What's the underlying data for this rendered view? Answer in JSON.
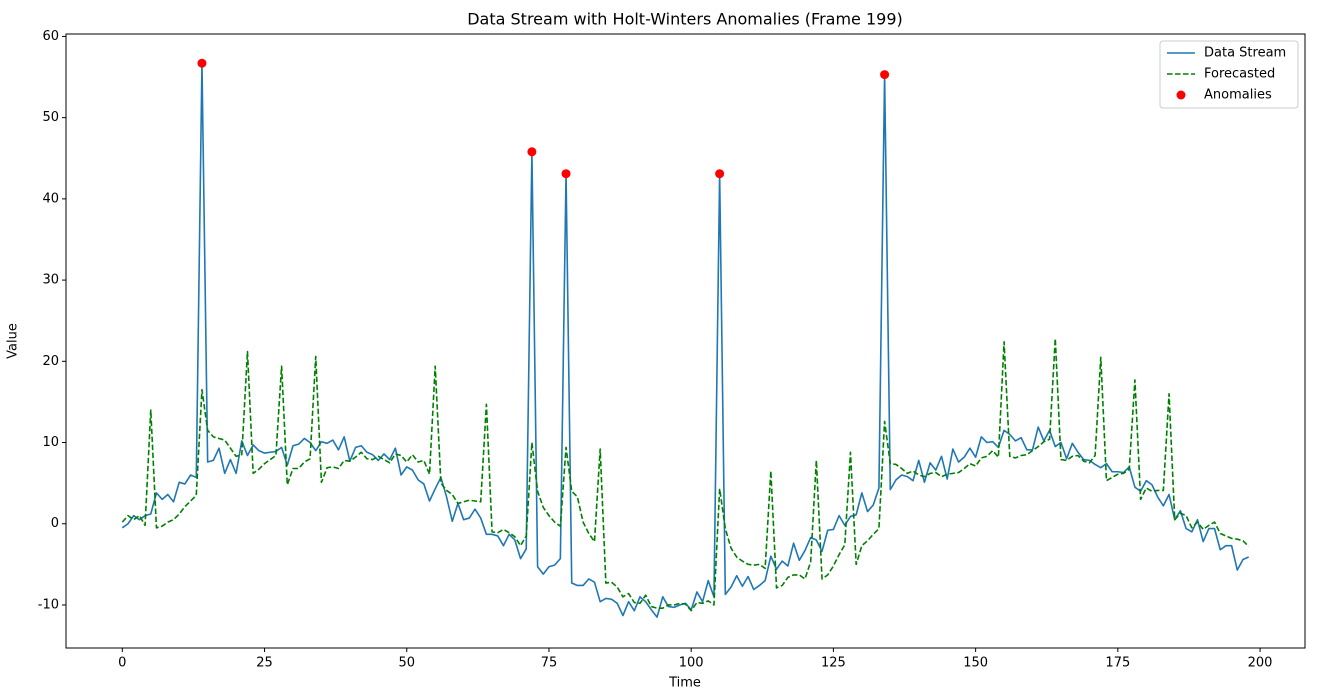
{
  "chart_data": {
    "type": "line",
    "title": "Data Stream with Holt-Winters Anomalies (Frame 199)",
    "x_label": "Time",
    "y_label": "Value",
    "x": [
      0,
      1,
      2,
      3,
      4,
      5,
      6,
      7,
      8,
      9,
      10,
      11,
      12,
      13,
      14,
      15,
      16,
      17,
      18,
      19,
      20,
      21,
      22,
      23,
      24,
      25,
      26,
      27,
      28,
      29,
      30,
      31,
      32,
      33,
      34,
      35,
      36,
      37,
      38,
      39,
      40,
      41,
      42,
      43,
      44,
      45,
      46,
      47,
      48,
      49,
      50,
      51,
      52,
      53,
      54,
      55,
      56,
      57,
      58,
      59,
      60,
      61,
      62,
      63,
      64,
      65,
      66,
      67,
      68,
      69,
      70,
      71,
      72,
      73,
      74,
      75,
      76,
      77,
      78,
      79,
      80,
      81,
      82,
      83,
      84,
      85,
      86,
      87,
      88,
      89,
      90,
      91,
      92,
      93,
      94,
      95,
      96,
      97,
      98,
      99,
      100,
      101,
      102,
      103,
      104,
      105,
      106,
      107,
      108,
      109,
      110,
      111,
      112,
      113,
      114,
      115,
      116,
      117,
      118,
      119,
      120,
      121,
      122,
      123,
      124,
      125,
      126,
      127,
      128,
      129,
      130,
      131,
      132,
      133,
      134,
      135,
      136,
      137,
      138,
      139,
      140,
      141,
      142,
      143,
      144,
      145,
      146,
      147,
      148,
      149,
      150,
      151,
      152,
      153,
      154,
      155,
      156,
      157,
      158,
      159,
      160,
      161,
      162,
      163,
      164,
      165,
      166,
      167,
      168,
      169,
      170,
      171,
      172,
      173,
      174,
      175,
      176,
      177,
      178,
      179,
      180,
      181,
      182,
      183,
      184,
      185,
      186,
      187,
      188,
      189,
      190,
      191,
      192,
      193,
      194,
      195,
      196,
      197,
      198
    ],
    "series": [
      {
        "name": "Data Stream",
        "color": "#1f77b4",
        "style": "solid",
        "values": [
          -0.5,
          0,
          1,
          0.5,
          1,
          1.2,
          3.8,
          3,
          3.6,
          2.7,
          5.1,
          4.9,
          6,
          5.7,
          56.7,
          7.6,
          7.8,
          9.3,
          6.2,
          7.9,
          6.2,
          10.2,
          8.4,
          9.7,
          9,
          8.7,
          8.8,
          8.9,
          9.4,
          7.2,
          9.6,
          9.8,
          10.5,
          10,
          9,
          10.1,
          9.9,
          10.3,
          9.1,
          10.7,
          7.7,
          9.4,
          9.6,
          8.8,
          8.5,
          7.8,
          8.6,
          7.9,
          9.3,
          6,
          7,
          6.6,
          5.4,
          4.9,
          2.8,
          4.3,
          5.7,
          3.3,
          0.3,
          2.5,
          0.5,
          0.7,
          1.8,
          0.7,
          -1.3,
          -1.3,
          -1.5,
          -2.7,
          -1.3,
          -2,
          -4.3,
          -3.1,
          45.8,
          -5.3,
          -6.2,
          -5.3,
          -5.1,
          -4.3,
          43.1,
          -7.3,
          -7.6,
          -7.6,
          -6.8,
          -7.2,
          -9.6,
          -9.2,
          -9.3,
          -9.8,
          -11.3,
          -9.6,
          -10.7,
          -9,
          -9.6,
          -10.6,
          -11.5,
          -9,
          -10.2,
          -10.3,
          -10,
          -9.8,
          -10.6,
          -8.4,
          -9.6,
          -7,
          -9,
          43.1,
          -8.7,
          -7.8,
          -6.4,
          -7.7,
          -6.5,
          -8.1,
          -7.6,
          -7,
          -4,
          -5.6,
          -4.6,
          -5.2,
          -2.4,
          -4.5,
          -3.3,
          -1.7,
          -2,
          -3.4,
          -0.8,
          -0.7,
          1,
          -0.2,
          0.9,
          1.1,
          3.8,
          1.5,
          2.3,
          4.4,
          55.3,
          4.2,
          5.4,
          6,
          5.8,
          5.3,
          7.8,
          5.1,
          7.5,
          6.6,
          8.3,
          5.5,
          9.2,
          7.6,
          8.2,
          9.3,
          8.2,
          10.7,
          10,
          10.1,
          9.4,
          11.5,
          11,
          10.2,
          10.6,
          9.1,
          9.1,
          11.9,
          10.2,
          11.5,
          9.5,
          10,
          8,
          9.9,
          8.8,
          7.9,
          7.8,
          7.3,
          6.9,
          7.4,
          6.4,
          6.4,
          6.3,
          7,
          4.5,
          4,
          5.3,
          4.8,
          3.3,
          2.2,
          3.6,
          0.5,
          1.6,
          -0.6,
          -1,
          0.5,
          -2.2,
          -0.6,
          -0.6,
          -3.2,
          -2.7,
          -2.7,
          -5.7,
          -4.4,
          -4.1
        ]
      },
      {
        "name": "Forecasted",
        "color": "#008000",
        "style": "dashed",
        "values": [
          0.2,
          1,
          0.5,
          1,
          -0.2,
          14,
          -0.5,
          -0.3,
          0.2,
          0.5,
          1.2,
          2.1,
          2.8,
          3.5,
          16.5,
          11.5,
          10.7,
          10.5,
          10.3,
          9.3,
          8.3,
          8.5,
          21.2,
          6.2,
          6.7,
          7.4,
          7.9,
          8.4,
          19.4,
          4.8,
          6.8,
          6.8,
          7.6,
          8,
          20.6,
          5.1,
          6.9,
          7,
          6.8,
          7.8,
          7.7,
          8.2,
          8.8,
          8,
          7.9,
          8.3,
          7.9,
          7.5,
          8.6,
          8.4,
          7.6,
          8.5,
          7.6,
          7.8,
          6.1,
          19.4,
          5,
          4.1,
          3.6,
          2.5,
          2.7,
          2.9,
          2.8,
          2.7,
          14.7,
          -1,
          -1.1,
          -0.7,
          -1.1,
          -1.6,
          -2.7,
          -1.5,
          10,
          4,
          2,
          1,
          0.2,
          -0.3,
          9.4,
          4,
          3.3,
          0.2,
          -1.2,
          -2.2,
          9.2,
          -7.3,
          -7.2,
          -7.8,
          -9,
          -8.6,
          -9.7,
          -9.8,
          -8.8,
          -10.2,
          -10.4,
          -10.4,
          -10,
          -10,
          -9.8,
          -9.9,
          -10.7,
          -9.7,
          -9.8,
          -9.5,
          -10,
          4.3,
          -0.6,
          -3,
          -4.1,
          -4.6,
          -5,
          -5.1,
          -5,
          -5.5,
          6.5,
          -7.9,
          -7.6,
          -6.6,
          -6.3,
          -6.3,
          -6.8,
          -4.7,
          7.8,
          -6.8,
          -6.3,
          -5.2,
          -3.8,
          -2.6,
          8.8,
          -5,
          -2.7,
          -2.1,
          -1.3,
          -0.6,
          12.6,
          7.4,
          7.3,
          6.8,
          6.2,
          6.5,
          6,
          5.8,
          6.2,
          6.3,
          5.8,
          6.1,
          6.2,
          6.3,
          6.8,
          7.4,
          7.1,
          8.1,
          8.3,
          9,
          8.2,
          22.4,
          8.3,
          8.1,
          8.4,
          8.5,
          9,
          9.5,
          10.1,
          10.4,
          22.8,
          7.9,
          7.8,
          8.3,
          8.4,
          7.7,
          7.5,
          8.4,
          20.5,
          5.3,
          5.7,
          6.1,
          6.2,
          6.7,
          17.7,
          3,
          4.4,
          4,
          4.1,
          4.1,
          16,
          0.5,
          1.3,
          1,
          -0.5,
          0.2,
          -0.7,
          -0.2,
          0.2,
          -1.2,
          -1.5,
          -1.8,
          -1.9,
          -2.1,
          -2.8
        ]
      },
      {
        "name": "Anomalies",
        "color": "#ff0000",
        "style": "scatter",
        "x": [
          14,
          72,
          78,
          105,
          134
        ],
        "values": [
          56.7,
          45.8,
          43.1,
          43.1,
          55.3
        ]
      }
    ],
    "xlim": [
      -9.9,
      207.9
    ],
    "ylim": [
      -15.3,
      60.3
    ],
    "xticks": [
      0,
      25,
      50,
      75,
      100,
      125,
      150,
      175,
      200
    ],
    "yticks": [
      -10,
      0,
      10,
      20,
      30,
      40,
      50,
      60
    ],
    "grid": false,
    "legend": "upper-right"
  }
}
